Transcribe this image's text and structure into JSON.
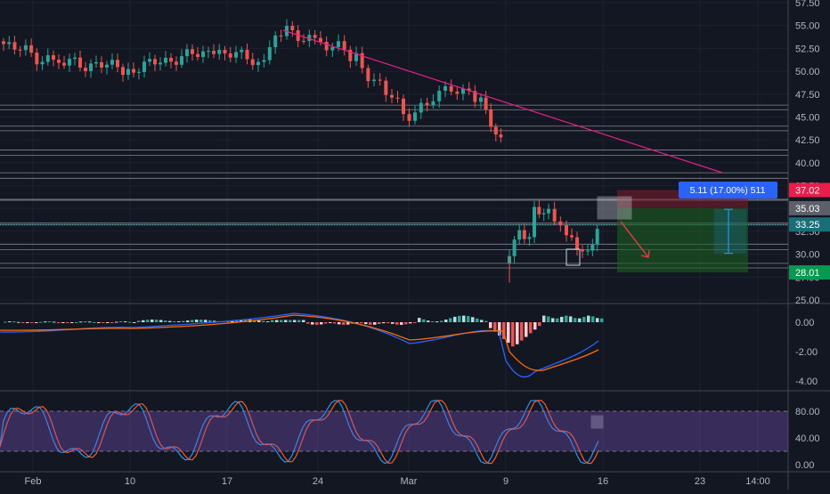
{
  "colors": {
    "background": "#131722",
    "grid": "#1e2230",
    "up": "#26a69a",
    "down": "#ef5350",
    "axis_text": "#b2b5be",
    "separator": "#434651",
    "trendline": "#e91e8c",
    "hline": "#787b86",
    "macd_line": "#2962ff",
    "signal_line": "#ff6d00",
    "stoch_k": "#2196f3",
    "stoch_d": "#ff5722",
    "stoch_band": "#7e57c2",
    "target_zone": "#1b5e20",
    "stop_zone": "#7f1d2d",
    "measure_box": "#2196f3",
    "label_red": "#e91e4b",
    "label_grey": "#5d606b",
    "label_teal": "#1a6e78",
    "label_green": "#089950",
    "arrow": "#f23645",
    "box_outline": "#d1d4dc"
  },
  "chart_data": [
    {
      "type": "candlestick",
      "panel": "price",
      "y_ticks": [
        "57.50",
        "55.00",
        "52.50",
        "50.00",
        "47.50",
        "45.00",
        "42.50",
        "40.00",
        "37.50",
        "35.00",
        "32.50",
        "30.00",
        "27.50",
        "25.00"
      ],
      "ylim": [
        24.5,
        58.5
      ],
      "x_ticks": [
        "Feb",
        "10",
        "17",
        "24",
        "Mar",
        "9",
        "16",
        "23",
        "14:00"
      ],
      "price_labels": [
        {
          "value": "37.02",
          "color": "label_red"
        },
        {
          "value": "35.03",
          "color": "label_grey"
        },
        {
          "value": "33.25",
          "color": "label_teal"
        },
        {
          "value": "28.01",
          "color": "label_green"
        }
      ],
      "horizontal_levels": [
        46.3,
        45.8,
        44.0,
        43.5,
        41.4,
        40.8,
        38.9,
        38.3,
        36.0,
        35.9,
        33.4,
        33.2,
        31.1,
        30.5,
        29.0,
        28.5
      ],
      "trendline": {
        "from": {
          "x": "Feb 21",
          "y": 54.8
        },
        "to": {
          "x": "Mar 21",
          "y": 38.8
        }
      },
      "measure_label": "5.11 (17.00%) 511",
      "long_position": {
        "entry": 35.03,
        "stop": 37.02,
        "target": 28.01
      }
    },
    {
      "type": "line+histogram",
      "panel": "MACD",
      "y_ticks": [
        "0.00",
        "-2.00",
        "-4.00"
      ],
      "series": []
    },
    {
      "type": "line",
      "panel": "Stochastic",
      "y_ticks": [
        "80.00",
        "40.00",
        "0.00"
      ],
      "band": [
        20,
        80
      ],
      "series": []
    }
  ]
}
